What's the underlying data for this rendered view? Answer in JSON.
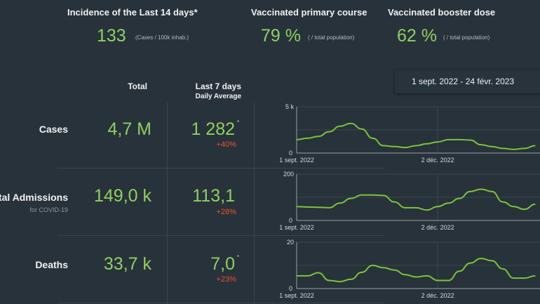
{
  "kpis": [
    {
      "title": "Incidence of the Last 14 days*",
      "value": "133",
      "unit": "(Cases / 100k inhab.)"
    },
    {
      "title": "Vaccinated primary course",
      "value": "79 %",
      "unit": "( / total population)"
    },
    {
      "title": "Vaccinated booster dose",
      "value": "62 %",
      "unit": "( / total population)"
    }
  ],
  "date_range": "1 sept. 2022 - 24 févr. 2023",
  "table": {
    "headers": {
      "total": "Total",
      "last7": "Last 7 days",
      "last7_sub": "Daily Average"
    },
    "rows": [
      {
        "label": "Cases",
        "sub": "",
        "total": "4,7 M",
        "avg": "1 282",
        "change": "+40%",
        "marker": "*"
      },
      {
        "label": "Hospital Admissions",
        "sub": "for COVID-19",
        "total": "149,0 k",
        "avg": "113,1",
        "change": "+28%",
        "marker": ""
      },
      {
        "label": "Deaths",
        "sub": "",
        "total": "33,7 k",
        "avg": "7,0",
        "change": "+23%",
        "marker": "*"
      }
    ]
  },
  "colors": {
    "value": "#8fcf64",
    "line": "#7dc23c",
    "change": "#e8552c",
    "background": "#28323a"
  },
  "chart_data": [
    {
      "type": "line",
      "ylim": [
        0,
        5000
      ],
      "yticks": [
        "0",
        "5 k"
      ],
      "xticks": [
        "1 sept. 2022",
        "2 déc. 2022"
      ],
      "grid": true,
      "x": [
        "2022-09-01",
        "2022-09-08",
        "2022-09-15",
        "2022-09-22",
        "2022-09-29",
        "2022-10-06",
        "2022-10-13",
        "2022-10-20",
        "2022-10-27",
        "2022-11-03",
        "2022-11-10",
        "2022-11-17",
        "2022-11-24",
        "2022-12-01",
        "2022-12-08",
        "2022-12-15",
        "2022-12-22",
        "2022-12-29",
        "2023-01-05",
        "2023-01-12",
        "2023-01-19",
        "2023-01-26",
        "2023-02-02"
      ],
      "values": [
        1450,
        1600,
        1800,
        2300,
        2900,
        3200,
        2600,
        1600,
        800,
        700,
        600,
        800,
        1000,
        1200,
        1450,
        1450,
        1400,
        900,
        700,
        500,
        400,
        500,
        800
      ]
    },
    {
      "type": "line",
      "ylim": [
        0,
        200
      ],
      "yticks": [
        "0",
        "200"
      ],
      "xticks": [
        "1 sept. 2022",
        "2 déc. 2022"
      ],
      "grid": true,
      "x": [
        "2022-09-01",
        "2022-09-08",
        "2022-09-15",
        "2022-09-22",
        "2022-09-29",
        "2022-10-06",
        "2022-10-13",
        "2022-10-20",
        "2022-10-27",
        "2022-11-03",
        "2022-11-10",
        "2022-11-17",
        "2022-11-24",
        "2022-12-01",
        "2022-12-08",
        "2022-12-15",
        "2022-12-22",
        "2022-12-29",
        "2023-01-05",
        "2023-01-12",
        "2023-01-19",
        "2023-01-26",
        "2023-02-02"
      ],
      "values": [
        60,
        58,
        57,
        55,
        75,
        95,
        110,
        110,
        108,
        80,
        55,
        55,
        45,
        60,
        75,
        95,
        125,
        135,
        125,
        80,
        60,
        48,
        70
      ]
    },
    {
      "type": "line",
      "ylim": [
        0,
        20
      ],
      "yticks": [
        "0",
        "20"
      ],
      "xticks": [
        "1 sept. 2022",
        "2 déc. 2022"
      ],
      "grid": true,
      "x": [
        "2022-09-01",
        "2022-09-08",
        "2022-09-15",
        "2022-09-22",
        "2022-09-29",
        "2022-10-06",
        "2022-10-13",
        "2022-10-20",
        "2022-10-27",
        "2022-11-03",
        "2022-11-10",
        "2022-11-17",
        "2022-11-24",
        "2022-12-01",
        "2022-12-08",
        "2022-12-15",
        "2022-12-22",
        "2022-12-29",
        "2023-01-05",
        "2023-01-12",
        "2023-01-19",
        "2023-01-26",
        "2023-02-02"
      ],
      "values": [
        5.5,
        5.5,
        6.8,
        3.5,
        3,
        4,
        7,
        10,
        9,
        8,
        6,
        5,
        5.5,
        3.5,
        3.5,
        7.5,
        11,
        13,
        12,
        8.5,
        4.5,
        4.5,
        5.5
      ]
    }
  ]
}
